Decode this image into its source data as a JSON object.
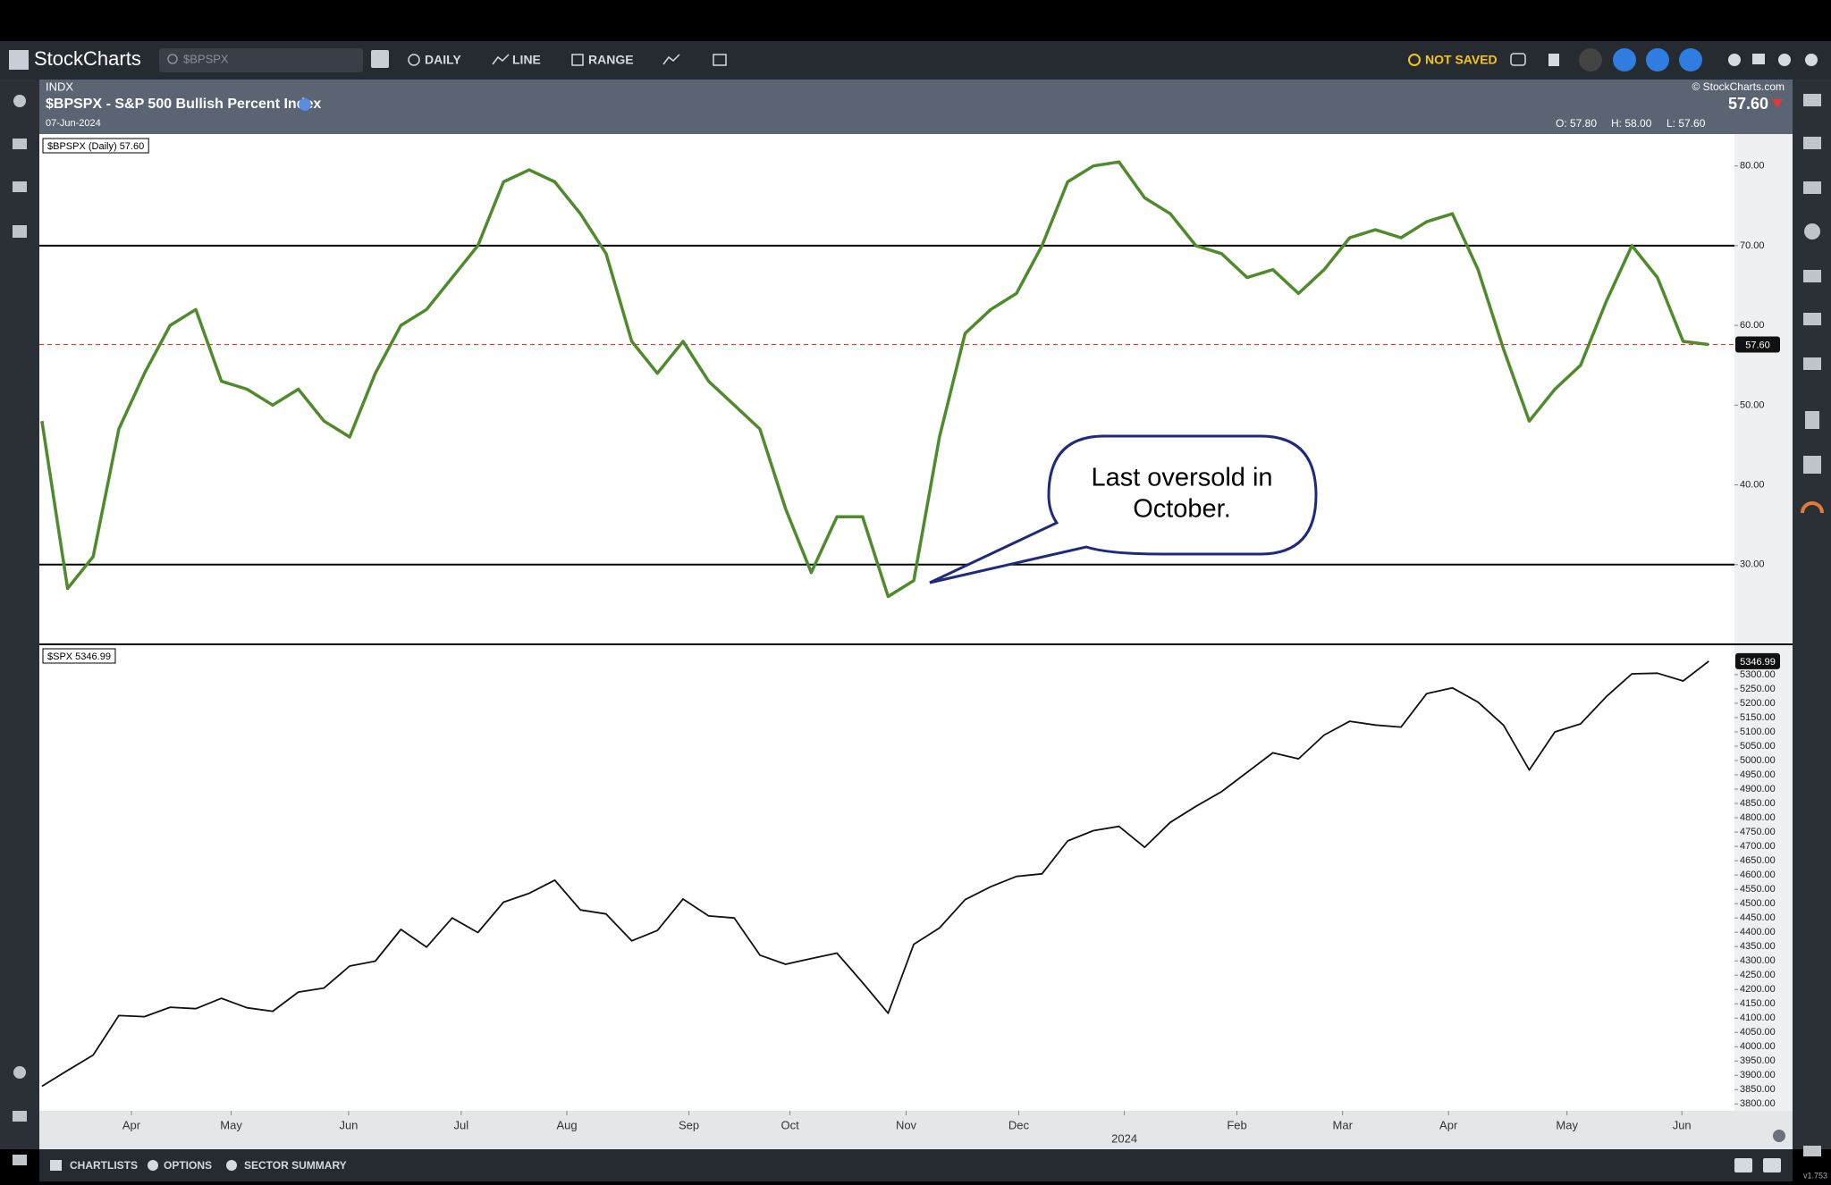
{
  "toolbar": {
    "logo": "StockCharts",
    "search": "$BPSPX",
    "buttons": [
      "DAILY",
      "LINE",
      "RANGE"
    ],
    "status": "NOT SAVED"
  },
  "header": {
    "exchange": "INDX",
    "title": "$BPSPX - S&P 500 Bullish Percent Index",
    "date": "07-Jun-2024",
    "copyright": "© StockCharts.com",
    "price": "57.60",
    "ohlc": [
      "O: 57.80",
      "H: 58.00",
      "L: 57.60"
    ]
  },
  "footer": {
    "tabs": [
      "CHARTLISTS",
      "OPTIONS",
      "SECTOR SUMMARY"
    ],
    "version": "v1.753"
  },
  "chart_data": [
    {
      "type": "line",
      "legend": "$BPSPX (Daily) 57.60",
      "series": [
        {
          "color": "#4f8a2c",
          "values": [
            48,
            27,
            31,
            47,
            54,
            60,
            62,
            53,
            52,
            50,
            52,
            48,
            46,
            54,
            60,
            62,
            66,
            70,
            78,
            79.5,
            78,
            74,
            69,
            58,
            54,
            58,
            53,
            50,
            47,
            37,
            29,
            36,
            36,
            26,
            28,
            46,
            59,
            62,
            64,
            70,
            78,
            80,
            80.5,
            76,
            74,
            70,
            69,
            66,
            67,
            64,
            67,
            71,
            72,
            71,
            73,
            74,
            67,
            57,
            48,
            52,
            55,
            63,
            70,
            66,
            58,
            57.6
          ]
        }
      ],
      "xlim": [
        -0.1,
        66
      ],
      "ylim": [
        20,
        84
      ],
      "yticks": [
        {
          "value": 30,
          "label": "30.00"
        },
        {
          "value": 40,
          "label": "40.00"
        },
        {
          "value": 50,
          "label": "50.00"
        },
        {
          "value": 60,
          "label": "60.00"
        },
        {
          "value": 70,
          "label": "70.00"
        },
        {
          "value": 80,
          "label": "80.00"
        }
      ],
      "hlines": [
        70,
        30
      ],
      "hline_color": "#000000",
      "last": {
        "value": 57.6,
        "label": "57.60"
      },
      "last_line_color": "#e53935",
      "callout": [
        "Last oversold in",
        "October."
      ]
    },
    {
      "type": "line",
      "legend": "$SPX 5346.99",
      "series": [
        {
          "color": "#111111",
          "values": [
            3862,
            3917,
            3971,
            4109,
            4105,
            4138,
            4133,
            4169,
            4136,
            4124,
            4191,
            4205,
            4282,
            4299,
            4410,
            4348,
            4450,
            4399,
            4505,
            4536,
            4582,
            4478,
            4464,
            4370,
            4406,
            4516,
            4457,
            4450,
            4320,
            4288,
            4308,
            4327,
            4224,
            4117,
            4358,
            4415,
            4514,
            4559,
            4595,
            4604,
            4719,
            4755,
            4770,
            4697,
            4784,
            4840,
            4891,
            4959,
            5027,
            5006,
            5089,
            5137,
            5124,
            5117,
            5234,
            5254,
            5204,
            5123,
            4967,
            5100,
            5128,
            5223,
            5303,
            5305,
            5278,
            5346.99
          ]
        }
      ],
      "xlim": [
        -0.1,
        66
      ],
      "ylim": [
        3776,
        5406
      ],
      "yticks": [
        {
          "value": 3800,
          "label": "3800.00"
        },
        {
          "value": 3850,
          "label": "3850.00"
        },
        {
          "value": 3900,
          "label": "3900.00"
        },
        {
          "value": 3950,
          "label": "3950.00"
        },
        {
          "value": 4000,
          "label": "4000.00"
        },
        {
          "value": 4050,
          "label": "4050.00"
        },
        {
          "value": 4100,
          "label": "4100.00"
        },
        {
          "value": 4150,
          "label": "4150.00"
        },
        {
          "value": 4200,
          "label": "4200.00"
        },
        {
          "value": 4250,
          "label": "4250.00"
        },
        {
          "value": 4300,
          "label": "4300.00"
        },
        {
          "value": 4350,
          "label": "4350.00"
        },
        {
          "value": 4400,
          "label": "4400.00"
        },
        {
          "value": 4450,
          "label": "4450.00"
        },
        {
          "value": 4500,
          "label": "4500.00"
        },
        {
          "value": 4550,
          "label": "4550.00"
        },
        {
          "value": 4600,
          "label": "4600.00"
        },
        {
          "value": 4650,
          "label": "4650.00"
        },
        {
          "value": 4700,
          "label": "4700.00"
        },
        {
          "value": 4750,
          "label": "4750.00"
        },
        {
          "value": 4800,
          "label": "4800.00"
        },
        {
          "value": 4850,
          "label": "4850.00"
        },
        {
          "value": 4900,
          "label": "4900.00"
        },
        {
          "value": 4950,
          "label": "4950.00"
        },
        {
          "value": 5000,
          "label": "5000.00"
        },
        {
          "value": 5050,
          "label": "5050.00"
        },
        {
          "value": 5100,
          "label": "5100.00"
        },
        {
          "value": 5150,
          "label": "5150.00"
        },
        {
          "value": 5200,
          "label": "5200.00"
        },
        {
          "value": 5250,
          "label": "5250.00"
        },
        {
          "value": 5300,
          "label": "5300.00"
        }
      ],
      "last": {
        "value": 5346.99,
        "label": "5346.99"
      },
      "xticks": [
        {
          "value": 3.49,
          "label": "Apr"
        },
        {
          "value": 7.38,
          "label": "May"
        },
        {
          "value": 11.96,
          "label": "Jun"
        },
        {
          "value": 16.35,
          "label": "Jul"
        },
        {
          "value": 20.47,
          "label": "Aug"
        },
        {
          "value": 25.23,
          "label": "Sep"
        },
        {
          "value": 29.17,
          "label": "Oct"
        },
        {
          "value": 33.7,
          "label": "Nov"
        },
        {
          "value": 38.09,
          "label": "Dec"
        },
        {
          "value": 42.21,
          "label": "2024"
        },
        {
          "value": 46.6,
          "label": "Feb"
        },
        {
          "value": 50.72,
          "label": "Mar"
        },
        {
          "value": 54.85,
          "label": "Apr"
        },
        {
          "value": 59.47,
          "label": "May"
        },
        {
          "value": 63.95,
          "label": "Jun"
        }
      ]
    }
  ]
}
